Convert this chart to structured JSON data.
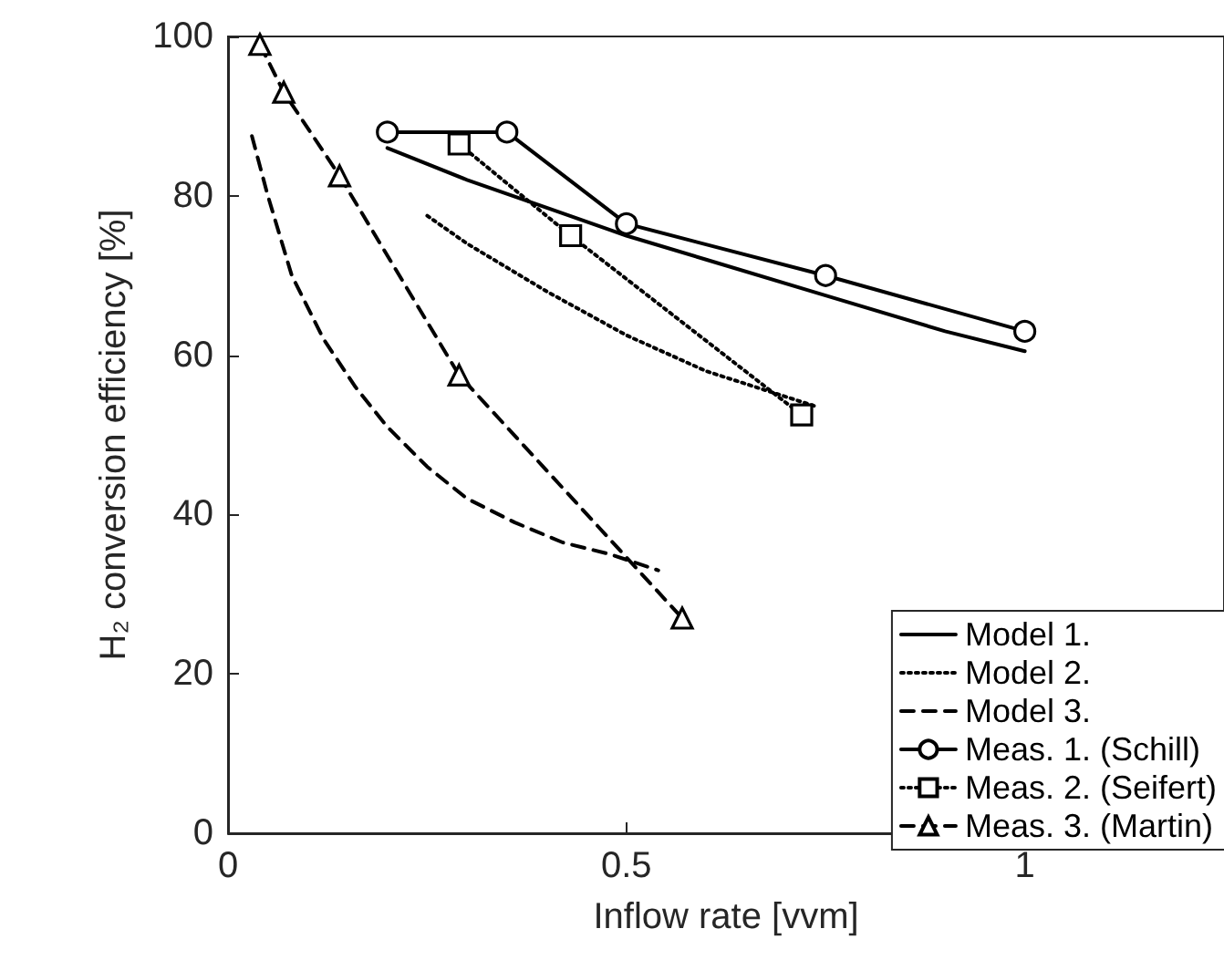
{
  "chart_data": {
    "type": "line",
    "xlabel": "Inflow rate [vvm]",
    "ylabel": "H₂ conversion efficiency [%]",
    "xlim": [
      0,
      1.25
    ],
    "xticks": [
      0,
      0.5,
      1
    ],
    "ylim": [
      0,
      100
    ],
    "yticks": [
      0,
      20,
      40,
      60,
      80,
      100
    ],
    "grid": false,
    "legend": "bottom right",
    "series": [
      {
        "name": "Model 1.",
        "color": "#000000",
        "marker": "none",
        "line_style": "solid",
        "x": [
          0.2,
          0.3,
          0.4,
          0.5,
          0.6,
          0.75,
          0.9,
          1.0
        ],
        "values": [
          86,
          82,
          78.5,
          75,
          72,
          67.5,
          63,
          60.5
        ]
      },
      {
        "name": "Model 2.",
        "color": "#000000",
        "marker": "none",
        "line_style": "dotted",
        "x": [
          0.25,
          0.3,
          0.4,
          0.5,
          0.6,
          0.74
        ],
        "values": [
          77.5,
          74,
          68,
          62.5,
          58,
          53.5
        ]
      },
      {
        "name": "Model 3.",
        "color": "#000000",
        "marker": "none",
        "line_style": "dashed",
        "x": [
          0.03,
          0.05,
          0.08,
          0.12,
          0.16,
          0.2,
          0.25,
          0.3,
          0.36,
          0.42,
          0.48,
          0.54
        ],
        "values": [
          87.5,
          80,
          70,
          62,
          56,
          51,
          46,
          42,
          39,
          36.5,
          35,
          33
        ]
      },
      {
        "name": "Meas. 1. (Schill)",
        "color": "#000000",
        "marker": "circle",
        "line_style": "solid",
        "x": [
          0.2,
          0.35,
          0.5,
          0.75,
          1.0
        ],
        "values": [
          88,
          88,
          76.5,
          70,
          63
        ]
      },
      {
        "name": "Meas. 2. (Seifert)",
        "color": "#000000",
        "marker": "square",
        "line_style": "dotted",
        "x": [
          0.29,
          0.43,
          0.72
        ],
        "values": [
          86.5,
          75,
          52.5
        ]
      },
      {
        "name": "Meas. 3. (Martin)",
        "color": "#000000",
        "marker": "triangle",
        "line_style": "dashed",
        "x": [
          0.04,
          0.07,
          0.14,
          0.29,
          0.57
        ],
        "values": [
          99,
          93,
          82.5,
          57.5,
          27
        ]
      }
    ]
  }
}
